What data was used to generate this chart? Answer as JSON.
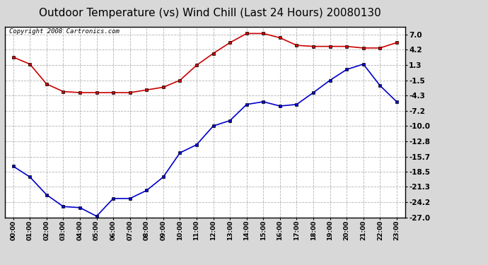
{
  "title": "Outdoor Temperature (vs) Wind Chill (Last 24 Hours) 20080130",
  "copyright": "Copyright 2008 Cartronics.com",
  "x_labels": [
    "00:00",
    "01:00",
    "02:00",
    "03:00",
    "04:00",
    "05:00",
    "06:00",
    "07:00",
    "08:00",
    "09:00",
    "10:00",
    "11:00",
    "12:00",
    "13:00",
    "14:00",
    "15:00",
    "16:00",
    "17:00",
    "18:00",
    "19:00",
    "20:00",
    "21:00",
    "22:00",
    "23:00"
  ],
  "temp_red": [
    2.8,
    1.5,
    -2.2,
    -3.6,
    -3.8,
    -3.8,
    -3.8,
    -3.8,
    -3.3,
    -2.8,
    -1.5,
    1.3,
    3.5,
    5.5,
    7.2,
    7.2,
    6.4,
    5.0,
    4.8,
    4.8,
    4.8,
    4.5,
    4.5,
    5.5
  ],
  "wind_chill_blue": [
    -17.5,
    -19.5,
    -22.8,
    -25.0,
    -25.2,
    -26.8,
    -23.5,
    -23.5,
    -22.0,
    -19.5,
    -15.0,
    -13.5,
    -10.0,
    -9.0,
    -6.0,
    -5.5,
    -6.3,
    -6.0,
    -3.8,
    -1.5,
    0.5,
    1.5,
    -2.5,
    -5.5
  ],
  "ylim": [
    -27.0,
    8.5
  ],
  "yticks": [
    7.0,
    4.2,
    1.3,
    -1.5,
    -4.3,
    -7.2,
    -10.0,
    -12.8,
    -15.7,
    -18.5,
    -21.3,
    -24.2,
    -27.0
  ],
  "bg_color": "#d8d8d8",
  "plot_bg_color": "#ffffff",
  "red_color": "#cc0000",
  "blue_color": "#0000cc",
  "grid_color": "#aaaaaa",
  "title_fontsize": 11,
  "copyright_fontsize": 6.5
}
